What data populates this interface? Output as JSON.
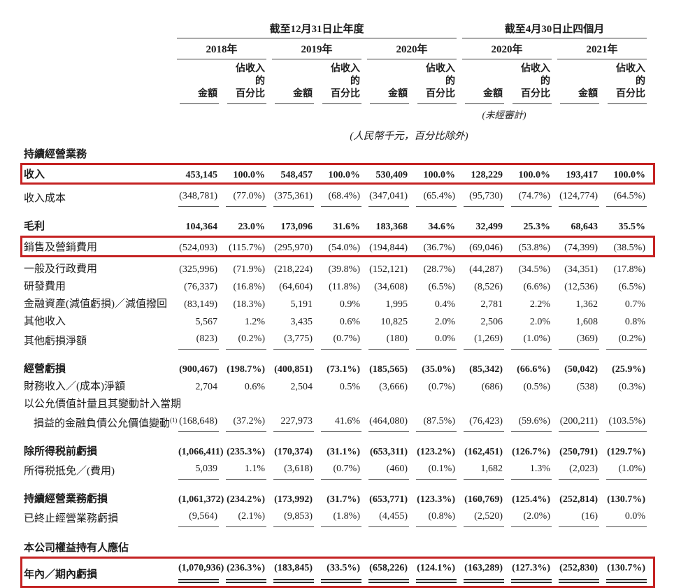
{
  "highlight_color": "#c42222",
  "table": {
    "header": {
      "group1": "截至12月31日止年度",
      "group2": "截至4月30日止四個月",
      "years": [
        "2018年",
        "2019年",
        "2020年",
        "2020年",
        "2021年"
      ],
      "amount_label": "金額",
      "pct_label_line1": "佔收入的",
      "pct_label_line2": "百分比",
      "unaudited_note": "(未經審計)",
      "units_note": "(人民幣千元，百分比除外)"
    },
    "rows": [
      {
        "type": "section",
        "label": "持續經營業務"
      },
      {
        "type": "data",
        "label": "收入",
        "bold": true,
        "highlight": true,
        "values": [
          "453,145",
          "100.0%",
          "548,457",
          "100.0%",
          "530,409",
          "100.0%",
          "128,229",
          "100.0%",
          "193,417",
          "100.0%"
        ]
      },
      {
        "type": "data",
        "label": "收入成本",
        "underline": true,
        "values": [
          "(348,781)",
          "(77.0%)",
          "(375,361)",
          "(68.4%)",
          "(347,041)",
          "(65.4%)",
          "(95,730)",
          "(74.7%)",
          "(124,774)",
          "(64.5%)"
        ]
      },
      {
        "type": "spacer"
      },
      {
        "type": "data",
        "label": "毛利",
        "bold": true,
        "values": [
          "104,364",
          "23.0%",
          "173,096",
          "31.6%",
          "183,368",
          "34.6%",
          "32,499",
          "25.3%",
          "68,643",
          "35.5%"
        ]
      },
      {
        "type": "data",
        "label": "銷售及營銷費用",
        "highlight": true,
        "values": [
          "(524,093)",
          "(115.7%)",
          "(295,970)",
          "(54.0%)",
          "(194,844)",
          "(36.7%)",
          "(69,046)",
          "(53.8%)",
          "(74,399)",
          "(38.5%)"
        ]
      },
      {
        "type": "data",
        "label": "一般及行政費用",
        "values": [
          "(325,996)",
          "(71.9%)",
          "(218,224)",
          "(39.8%)",
          "(152,121)",
          "(28.7%)",
          "(44,287)",
          "(34.5%)",
          "(34,351)",
          "(17.8%)"
        ]
      },
      {
        "type": "data",
        "label": "研發費用",
        "values": [
          "(76,337)",
          "(16.8%)",
          "(64,604)",
          "(11.8%)",
          "(34,608)",
          "(6.5%)",
          "(8,526)",
          "(6.6%)",
          "(12,536)",
          "(6.5%)"
        ]
      },
      {
        "type": "data",
        "label": "金融資產(減值虧損)／減值撥回",
        "values": [
          "(83,149)",
          "(18.3%)",
          "5,191",
          "0.9%",
          "1,995",
          "0.4%",
          "2,781",
          "2.2%",
          "1,362",
          "0.7%"
        ]
      },
      {
        "type": "data",
        "label": "其他收入",
        "values": [
          "5,567",
          "1.2%",
          "3,435",
          "0.6%",
          "10,825",
          "2.0%",
          "2,506",
          "2.0%",
          "1,608",
          "0.8%"
        ]
      },
      {
        "type": "data",
        "label": "其他虧損淨額",
        "underline": true,
        "values": [
          "(823)",
          "(0.2%)",
          "(3,775)",
          "(0.7%)",
          "(180)",
          "0.0%",
          "(1,269)",
          "(1.0%)",
          "(369)",
          "(0.2%)"
        ]
      },
      {
        "type": "spacer"
      },
      {
        "type": "data",
        "label": "經營虧損",
        "bold": true,
        "values": [
          "(900,467)",
          "(198.7%)",
          "(400,851)",
          "(73.1%)",
          "(185,565)",
          "(35.0%)",
          "(85,342)",
          "(66.6%)",
          "(50,042)",
          "(25.9%)"
        ]
      },
      {
        "type": "data",
        "label": "財務收入／(成本)淨額",
        "values": [
          "2,704",
          "0.6%",
          "2,504",
          "0.5%",
          "(3,666)",
          "(0.7%)",
          "(686)",
          "(0.5%)",
          "(538)",
          "(0.3%)"
        ]
      },
      {
        "type": "data",
        "label": "以公允價值計量且其變動計入當期",
        "values": []
      },
      {
        "type": "data",
        "label": "損益的金融負債公允價值變動",
        "sup": "(1)",
        "indent": true,
        "underline": true,
        "values": [
          "(168,648)",
          "(37.2%)",
          "227,973",
          "41.6%",
          "(464,080)",
          "(87.5%)",
          "(76,423)",
          "(59.6%)",
          "(200,211)",
          "(103.5%)"
        ]
      },
      {
        "type": "spacer"
      },
      {
        "type": "data",
        "label": "除所得税前虧損",
        "bold": true,
        "values": [
          "(1,066,411)",
          "(235.3%)",
          "(170,374)",
          "(31.1%)",
          "(653,311)",
          "(123.2%)",
          "(162,451)",
          "(126.7%)",
          "(250,791)",
          "(129.7%)"
        ]
      },
      {
        "type": "data",
        "label": "所得税抵免／(費用)",
        "underline": true,
        "values": [
          "5,039",
          "1.1%",
          "(3,618)",
          "(0.7%)",
          "(460)",
          "(0.1%)",
          "1,682",
          "1.3%",
          "(2,023)",
          "(1.0%)"
        ]
      },
      {
        "type": "spacer"
      },
      {
        "type": "data",
        "label": "持續經營業務虧損",
        "bold": true,
        "values": [
          "(1,061,372)",
          "(234.2%)",
          "(173,992)",
          "(31.7%)",
          "(653,771)",
          "(123.3%)",
          "(160,769)",
          "(125.4%)",
          "(252,814)",
          "(130.7%)"
        ]
      },
      {
        "type": "data",
        "label": "已終止經營業務虧損",
        "underline": true,
        "values": [
          "(9,564)",
          "(2.1%)",
          "(9,853)",
          "(1.8%)",
          "(4,455)",
          "(0.8%)",
          "(2,520)",
          "(2.0%)",
          "(16)",
          "0.0%"
        ]
      },
      {
        "type": "spacer"
      },
      {
        "type": "section",
        "label": "本公司權益持有人應佔"
      },
      {
        "type": "data",
        "label": "年內／期內虧損",
        "bold": true,
        "highlight": true,
        "double_underline": true,
        "values": [
          "(1,070,936)",
          "(236.3%)",
          "(183,845)",
          "(33.5%)",
          "(658,226)",
          "(124.1%)",
          "(163,289)",
          "(127.3%)",
          "(252,830)",
          "(130.7%)"
        ]
      }
    ]
  }
}
